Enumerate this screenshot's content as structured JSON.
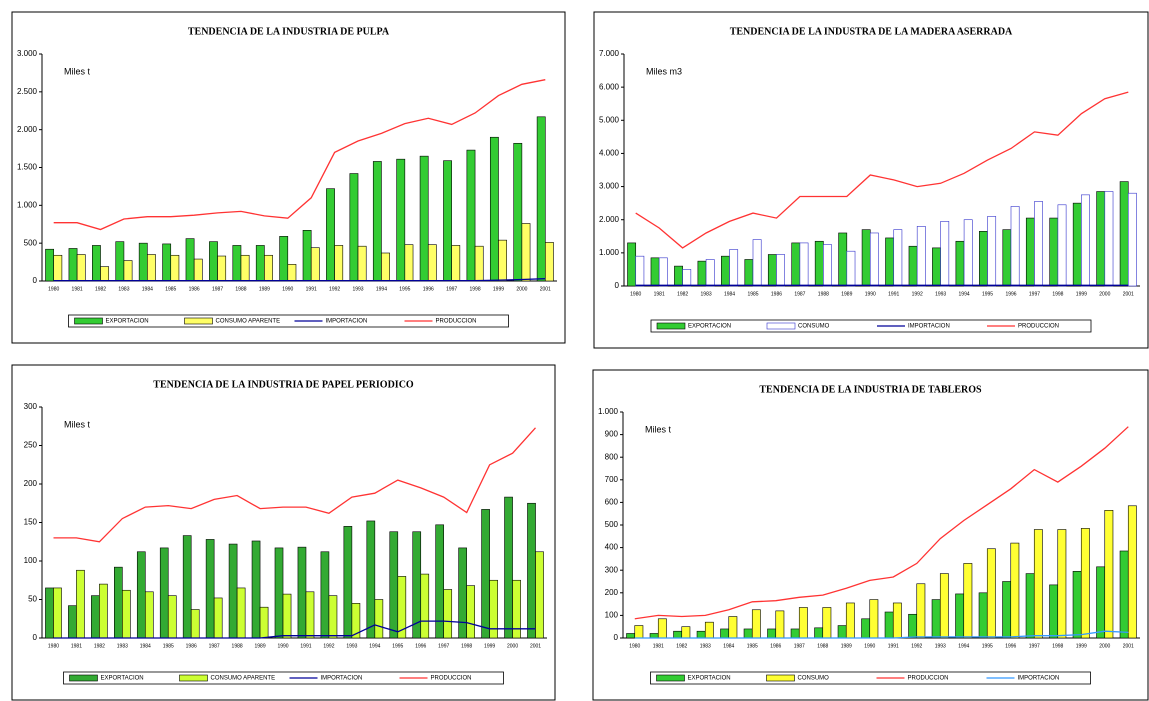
{
  "chart_data": [
    {
      "type": "bar",
      "title": "TENDENCIA DE LA INDUSTRIA DE PULPA",
      "annotation": "Miles t",
      "categories": [
        "1980",
        "1981",
        "1982",
        "1983",
        "1984",
        "1985",
        "1986",
        "1987",
        "1988",
        "1989",
        "1990",
        "1991",
        "1992",
        "1993",
        "1994",
        "1995",
        "1996",
        "1997",
        "1998",
        "1999",
        "2000",
        "2001"
      ],
      "ylim": [
        0,
        3000
      ],
      "yticks": [
        0,
        500,
        {
          "value": 1000,
          "label": "1.000"
        },
        {
          "value": 1500,
          "label": "1.500"
        },
        {
          "value": 2000,
          "label": "2.000"
        },
        {
          "value": 2500,
          "label": "2.500"
        },
        {
          "value": 3000,
          "label": "3.000"
        }
      ],
      "grid": false,
      "series": [
        {
          "name": "EXPORTACION",
          "kind": "bar",
          "color": "#33cc33",
          "values": [
            420,
            430,
            470,
            520,
            500,
            490,
            560,
            520,
            470,
            470,
            590,
            670,
            1220,
            1420,
            1580,
            1610,
            1650,
            1590,
            1730,
            1900,
            1820,
            2170
          ]
        },
        {
          "name": "CONSUMO APARENTE",
          "kind": "bar",
          "color": "#ffff66",
          "values": [
            340,
            350,
            190,
            270,
            350,
            340,
            290,
            330,
            340,
            340,
            220,
            440,
            470,
            460,
            370,
            480,
            480,
            470,
            460,
            540,
            760,
            510
          ]
        },
        {
          "name": "IMPORTACION",
          "kind": "line",
          "color": "#000099",
          "values": [
            5,
            5,
            5,
            5,
            5,
            5,
            5,
            5,
            5,
            5,
            5,
            5,
            5,
            5,
            5,
            5,
            5,
            5,
            5,
            10,
            20,
            30
          ]
        },
        {
          "name": "PRODUCCION",
          "kind": "line",
          "color": "#ff3333",
          "values": [
            770,
            770,
            680,
            820,
            850,
            850,
            870,
            900,
            920,
            860,
            830,
            1100,
            1700,
            1850,
            1950,
            2080,
            2150,
            2070,
            2220,
            2450,
            2600,
            2660
          ]
        }
      ]
    },
    {
      "type": "bar",
      "title": "TENDENCIA DE LA INDUSTRA DE LA MADERA ASERRADA",
      "annotation": "Miles m3",
      "categories": [
        "1980",
        "1981",
        "1982",
        "1983",
        "1984",
        "1985",
        "1986",
        "1987",
        "1988",
        "1989",
        "1990",
        "1991",
        "1992",
        "1993",
        "1994",
        "1995",
        "1996",
        "1997",
        "1998",
        "1999",
        "2000",
        "2001"
      ],
      "ylim": [
        0,
        7000
      ],
      "yticks": [
        0,
        {
          "value": 1000,
          "label": "1.000"
        },
        {
          "value": 2000,
          "label": "2.000"
        },
        {
          "value": 3000,
          "label": "3.000"
        },
        {
          "value": 4000,
          "label": "4.000"
        },
        {
          "value": 5000,
          "label": "5.000"
        },
        {
          "value": 6000,
          "label": "6.000"
        },
        {
          "value": 7000,
          "label": "7.000"
        }
      ],
      "grid": false,
      "series": [
        {
          "name": "EXPORTACION",
          "kind": "bar",
          "color": "#33cc33",
          "values": [
            1300,
            850,
            600,
            750,
            900,
            800,
            950,
            1300,
            1350,
            1600,
            1700,
            1450,
            1200,
            1150,
            1350,
            1650,
            1700,
            2050,
            2050,
            2500,
            2850,
            3150
          ]
        },
        {
          "name": "CONSUMO",
          "kind": "bar",
          "color": "#ffffff",
          "edge": "#3333cc",
          "values": [
            900,
            850,
            500,
            800,
            1100,
            1400,
            950,
            1300,
            1250,
            1050,
            1600,
            1700,
            1800,
            1950,
            2000,
            2100,
            2400,
            2550,
            2450,
            2750,
            2850,
            2800
          ]
        },
        {
          "name": "IMPORTACION",
          "kind": "line",
          "color": "#000099",
          "values": [
            20,
            20,
            20,
            20,
            20,
            20,
            20,
            20,
            20,
            20,
            20,
            20,
            20,
            20,
            20,
            20,
            20,
            20,
            20,
            20,
            20,
            20
          ]
        },
        {
          "name": "PRODUCCION",
          "kind": "line",
          "color": "#ff3333",
          "values": [
            2200,
            1750,
            1150,
            1600,
            1950,
            2200,
            2050,
            2700,
            2700,
            2700,
            3350,
            3200,
            3000,
            3100,
            3400,
            3800,
            4150,
            4650,
            4550,
            5200,
            5650,
            5850
          ]
        }
      ]
    },
    {
      "type": "bar",
      "title": "TENDENCIA DE LA INDUSTRIA DE PAPEL PERIODICO",
      "annotation": "Miles t",
      "categories": [
        "1980",
        "1981",
        "1982",
        "1983",
        "1984",
        "1985",
        "1986",
        "1987",
        "1988",
        "1989",
        "1990",
        "1991",
        "1992",
        "1993",
        "1994",
        "1995",
        "1996",
        "1997",
        "1998",
        "1999",
        "2000",
        "2001"
      ],
      "ylim": [
        0,
        300
      ],
      "yticks": [
        0,
        50,
        100,
        150,
        200,
        250,
        300
      ],
      "grid": false,
      "series": [
        {
          "name": "EXPORTACION",
          "kind": "bar",
          "color": "#33aa33",
          "values": [
            65,
            42,
            55,
            92,
            112,
            117,
            133,
            128,
            122,
            126,
            117,
            118,
            112,
            145,
            152,
            138,
            138,
            147,
            117,
            167,
            183,
            175
          ]
        },
        {
          "name": "CONSUMO APARENTE",
          "kind": "bar",
          "color": "#ccff33",
          "values": [
            65,
            88,
            70,
            62,
            60,
            55,
            37,
            52,
            65,
            40,
            57,
            60,
            55,
            45,
            50,
            80,
            83,
            63,
            68,
            75,
            75,
            112
          ]
        },
        {
          "name": "IMPORTACION",
          "kind": "line",
          "color": "#000099",
          "values": [
            0,
            0,
            0,
            0,
            0,
            0,
            0,
            0,
            0,
            0,
            3,
            3,
            3,
            3,
            17,
            8,
            22,
            22,
            20,
            12,
            12,
            12
          ]
        },
        {
          "name": "PRODUCCION",
          "kind": "line",
          "color": "#ff3333",
          "values": [
            130,
            130,
            125,
            155,
            170,
            172,
            168,
            180,
            185,
            168,
            170,
            170,
            162,
            183,
            188,
            205,
            195,
            183,
            163,
            225,
            240,
            273
          ]
        }
      ]
    },
    {
      "type": "bar",
      "title": "TENDENCIA DE LA INDUSTRIA DE TABLEROS",
      "annotation": "Miles t",
      "categories": [
        "1980",
        "1981",
        "1982",
        "1983",
        "1984",
        "1985",
        "1986",
        "1987",
        "1988",
        "1989",
        "1990",
        "1991",
        "1992",
        "1993",
        "1994",
        "1995",
        "1996",
        "1997",
        "1998",
        "1999",
        "2000",
        "2001"
      ],
      "ylim": [
        0,
        1000
      ],
      "yticks": [
        0,
        100,
        200,
        300,
        400,
        500,
        600,
        700,
        800,
        900,
        {
          "value": 1000,
          "label": "1.000"
        }
      ],
      "grid": false,
      "series": [
        {
          "name": "EXPORTACION",
          "kind": "bar",
          "color": "#33cc33",
          "values": [
            20,
            20,
            30,
            30,
            40,
            40,
            40,
            40,
            45,
            55,
            85,
            115,
            105,
            170,
            195,
            200,
            250,
            285,
            235,
            295,
            315,
            385
          ]
        },
        {
          "name": "CONSUMO",
          "kind": "bar",
          "color": "#ffff33",
          "values": [
            55,
            85,
            50,
            70,
            95,
            125,
            120,
            135,
            135,
            155,
            170,
            155,
            240,
            285,
            330,
            395,
            420,
            480,
            480,
            485,
            565,
            585
          ]
        },
        {
          "name": "PRODUCCION",
          "kind": "line",
          "color": "#ff3333",
          "values": [
            85,
            100,
            95,
            100,
            125,
            160,
            165,
            180,
            190,
            220,
            255,
            270,
            330,
            440,
            520,
            590,
            660,
            745,
            690,
            760,
            840,
            935
          ]
        },
        {
          "name": "IMPORTACION",
          "kind": "line",
          "color": "#3399ff",
          "values": [
            0,
            0,
            0,
            0,
            0,
            0,
            0,
            0,
            0,
            0,
            0,
            0,
            5,
            5,
            5,
            5,
            5,
            10,
            10,
            15,
            30,
            25
          ]
        }
      ]
    }
  ]
}
